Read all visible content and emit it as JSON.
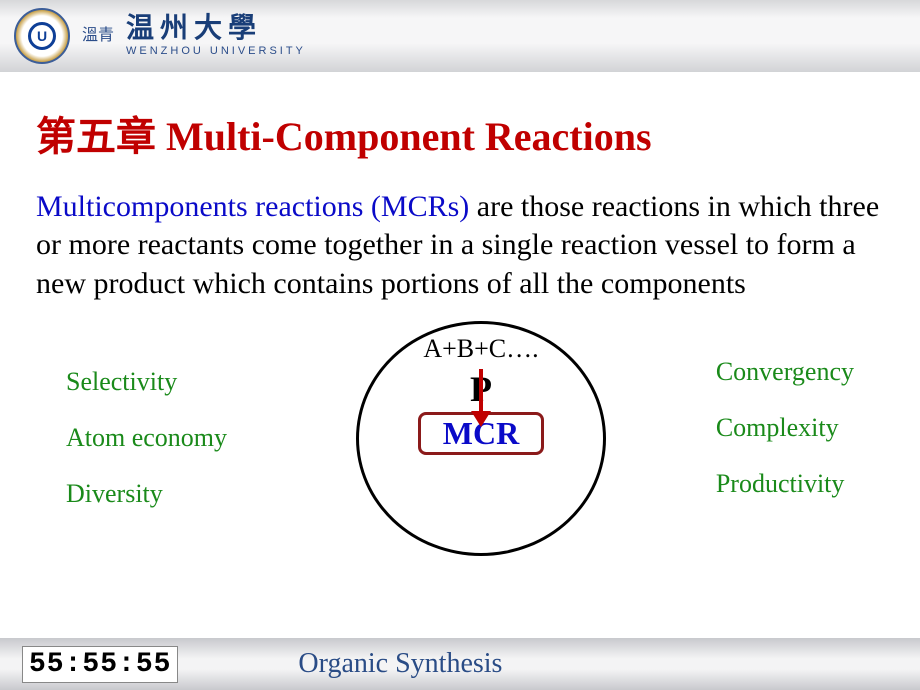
{
  "header": {
    "logo_letter": "U",
    "seal_chars": "溫青",
    "university_cn": "温州大學",
    "university_en": "WENZHOU UNIVERSITY"
  },
  "title": "第五章 Multi-Component Reactions",
  "definition": {
    "lead": "Multicomponents reactions (MCRs)",
    "body": " are those reactions in which three or more reactants come together in a single reaction vessel to form a new product which contains portions of all the components"
  },
  "diagram": {
    "left_terms": [
      "Selectivity",
      "Atom economy",
      "Diversity"
    ],
    "right_terms": [
      "Convergency",
      "Complexity",
      "Productivity"
    ],
    "formula": "A+B+C….",
    "product": "P",
    "box_label": "MCR",
    "arrow_color": "#c00000",
    "circle_border": "#000000",
    "box_border": "#8b1a1a",
    "term_color": "#1a8a1a",
    "box_text_color": "#0a0ac8"
  },
  "footer": {
    "clock": "55:55:55",
    "course": "Organic Synthesis"
  },
  "colors": {
    "title": "#c00000",
    "lead": "#0a0ac8",
    "footer_text": "#2a4c86",
    "background": "#ffffff"
  },
  "typography": {
    "title_fontsize": 40,
    "body_fontsize": 30,
    "term_fontsize": 26,
    "footer_fontsize": 28
  }
}
